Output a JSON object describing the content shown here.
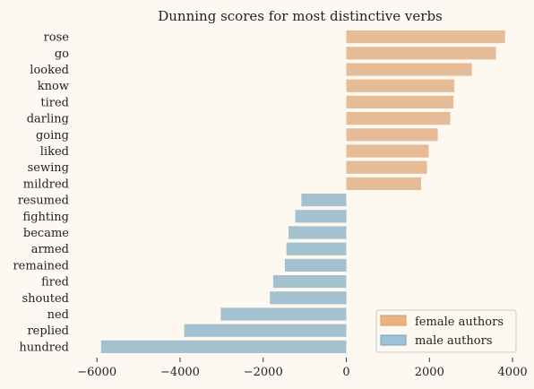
{
  "chart_data": {
    "type": "bar",
    "orientation": "horizontal",
    "title": "Dunning scores for most distinctive verbs",
    "xlabel": "",
    "ylabel": "",
    "xlim": [
      -6500,
      4300
    ],
    "xticks": [
      -6000,
      -4000,
      -2000,
      0,
      2000,
      4000
    ],
    "xtick_labels": [
      "−6000",
      "−4000",
      "−2000",
      "0",
      "2000",
      "4000"
    ],
    "categories": [
      "rose",
      "go",
      "looked",
      "know",
      "tired",
      "darling",
      "going",
      "liked",
      "sewing",
      "mildred",
      "resumed",
      "fighting",
      "became",
      "armed",
      "remained",
      "fired",
      "shouted",
      "ned",
      "replied",
      "hundred"
    ],
    "values": [
      3820,
      3600,
      3020,
      2600,
      2580,
      2500,
      2200,
      1980,
      1940,
      1800,
      -1080,
      -1230,
      -1390,
      -1440,
      -1480,
      -1760,
      -1840,
      -3020,
      -3900,
      -5900
    ],
    "series": [
      {
        "name": "female authors",
        "color": "#e5bb98",
        "categories": [
          "rose",
          "go",
          "looked",
          "know",
          "tired",
          "darling",
          "going",
          "liked",
          "sewing",
          "mildred"
        ]
      },
      {
        "name": "male authors",
        "color": "#a3c1cf",
        "categories": [
          "resumed",
          "fighting",
          "became",
          "armed",
          "remained",
          "fired",
          "shouted",
          "ned",
          "replied",
          "hundred"
        ]
      }
    ],
    "legend": {
      "position": "bottom-right",
      "items": [
        {
          "label": "female authors",
          "color": "#e8b482"
        },
        {
          "label": "male authors",
          "color": "#9ec3d6"
        }
      ]
    },
    "grid": false,
    "background": "#fdf8f0"
  }
}
